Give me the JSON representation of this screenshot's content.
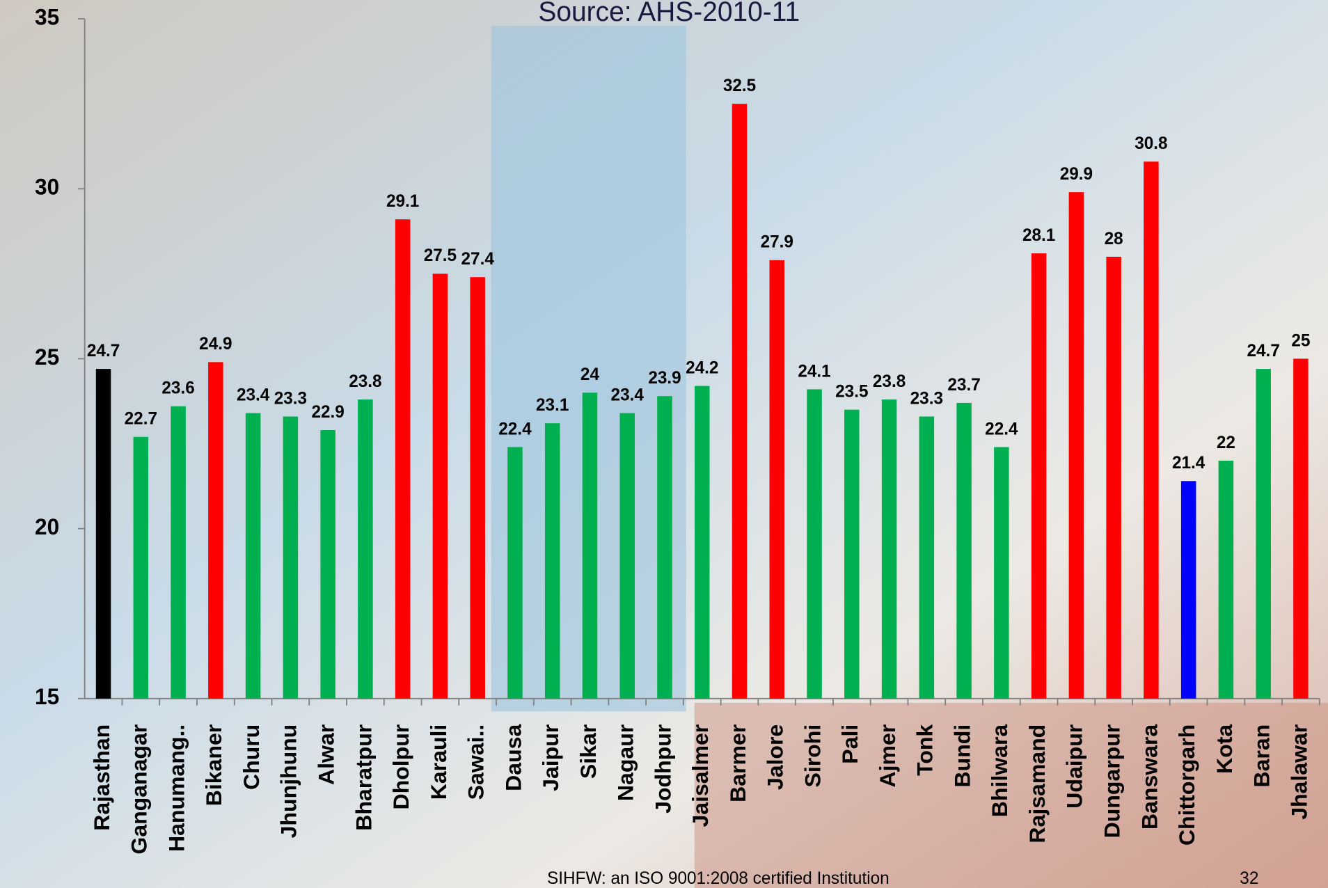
{
  "chart_data": {
    "type": "bar",
    "title": "Source: AHS-2010-11",
    "categories": [
      "Rajasthan",
      "Ganganagar",
      "Hanumang..",
      "Bikaner",
      "Churu",
      "Jhunjhunu",
      "Alwar",
      "Bharatpur",
      "Dholpur",
      "Karauli",
      "Sawai..",
      "Dausa",
      "Jaipur",
      "Sikar",
      "Nagaur",
      "Jodhpur",
      "Jaisalmer",
      "Barmer",
      "Jalore",
      "Sirohi",
      "Pali",
      "Ajmer",
      "Tonk",
      "Bundi",
      "Bhilwara",
      "Rajsamand",
      "Udaipur",
      "Dungarpur",
      "Banswara",
      "Chittorgarh",
      "Kota",
      "Baran",
      "Jhalawar"
    ],
    "values": [
      24.7,
      22.7,
      23.6,
      24.9,
      23.4,
      23.3,
      22.9,
      23.8,
      29.1,
      27.5,
      27.4,
      22.4,
      23.1,
      24,
      23.4,
      23.9,
      24.2,
      32.5,
      27.9,
      24.1,
      23.5,
      23.8,
      23.3,
      23.7,
      22.4,
      28.1,
      29.9,
      28,
      30.8,
      21.4,
      22,
      24.7,
      25
    ],
    "colors": [
      "#000000",
      "#00b050",
      "#00b050",
      "#ff0000",
      "#00b050",
      "#00b050",
      "#00b050",
      "#00b050",
      "#ff0000",
      "#ff0000",
      "#ff0000",
      "#00b050",
      "#00b050",
      "#00b050",
      "#00b050",
      "#00b050",
      "#00b050",
      "#ff0000",
      "#ff0000",
      "#00b050",
      "#00b050",
      "#00b050",
      "#00b050",
      "#00b050",
      "#00b050",
      "#ff0000",
      "#ff0000",
      "#ff0000",
      "#ff0000",
      "#0000ff",
      "#00b050",
      "#00b050",
      "#ff0000"
    ],
    "ylim": [
      15,
      35
    ],
    "yticks": [
      15,
      20,
      25,
      30,
      35
    ],
    "grid": false
  },
  "footer": {
    "text": "SIHFW: an ISO 9001:2008 certified Institution",
    "page_number": "32"
  }
}
